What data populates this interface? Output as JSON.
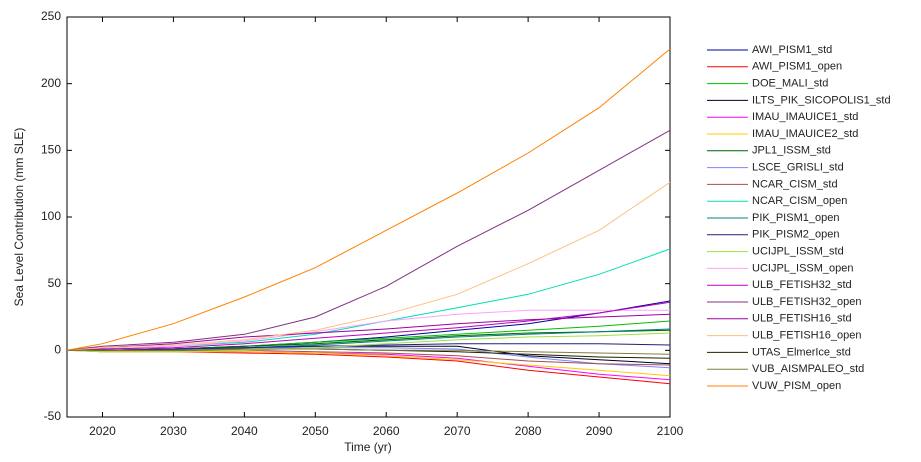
{
  "chart_data": {
    "type": "line",
    "xlabel": "Time (yr)",
    "ylabel": "Sea Level Contribution (mm SLE)",
    "x": [
      2015,
      2020,
      2030,
      2040,
      2050,
      2060,
      2070,
      2080,
      2090,
      2100
    ],
    "xlim": [
      2015,
      2100
    ],
    "xticks": [
      2020,
      2030,
      2040,
      2050,
      2060,
      2070,
      2080,
      2090,
      2100
    ],
    "ylim": [
      -50,
      250
    ],
    "yticks": [
      -50,
      0,
      50,
      100,
      150,
      200,
      250
    ],
    "grid": false,
    "legend": "outside right",
    "series": [
      {
        "name": "AWI_PISM1_std",
        "color": "#0000a0",
        "values": [
          0,
          0,
          1,
          3,
          6,
          10,
          15,
          20,
          28,
          37
        ]
      },
      {
        "name": "AWI_PISM1_open",
        "color": "#ff0000",
        "values": [
          0,
          -1,
          -1,
          -2,
          -3,
          -5,
          -8,
          -15,
          -20,
          -25
        ]
      },
      {
        "name": "DOE_MALI_std",
        "color": "#00c000",
        "values": [
          0,
          0,
          1,
          3,
          6,
          9,
          12,
          15,
          18,
          22
        ]
      },
      {
        "name": "ILTS_PIK_SICOPOLIS1_std",
        "color": "#000020",
        "values": [
          0,
          0,
          1,
          2,
          3,
          3,
          3,
          -4,
          -7,
          -10
        ]
      },
      {
        "name": "IMAU_IMAUICE1_std",
        "color": "#ff00ff",
        "values": [
          0,
          0,
          0,
          -1,
          -2,
          -3,
          -6,
          -12,
          -18,
          -22
        ]
      },
      {
        "name": "IMAU_IMAUICE2_std",
        "color": "#ffcc00",
        "values": [
          0,
          -1,
          -1,
          -1,
          -2,
          -4,
          -7,
          -11,
          -15,
          -19
        ]
      },
      {
        "name": "JPL1_ISSM_std",
        "color": "#006400",
        "values": [
          0,
          0,
          1,
          3,
          5,
          8,
          11,
          13,
          14,
          15
        ]
      },
      {
        "name": "LSCE_GRISLI_std",
        "color": "#8080ff",
        "values": [
          0,
          0,
          1,
          2,
          2,
          2,
          1,
          -5,
          -10,
          -13
        ]
      },
      {
        "name": "NCAR_CISM_std",
        "color": "#a05050",
        "values": [
          0,
          0,
          0,
          0,
          -1,
          -2,
          -4,
          -8,
          -10,
          -11
        ]
      },
      {
        "name": "NCAR_CISM_open",
        "color": "#00e0b0",
        "values": [
          0,
          1,
          3,
          6,
          12,
          22,
          32,
          42,
          57,
          76
        ]
      },
      {
        "name": "PIK_PISM1_open",
        "color": "#008080",
        "values": [
          0,
          0,
          1,
          2,
          4,
          7,
          10,
          12,
          14,
          16
        ]
      },
      {
        "name": "PIK_PISM2_open",
        "color": "#202080",
        "values": [
          0,
          0,
          1,
          2,
          3,
          4,
          5,
          5,
          5,
          4
        ]
      },
      {
        "name": "UCIJPL_ISSM_std",
        "color": "#a0e040",
        "values": [
          0,
          -1,
          -1,
          0,
          2,
          5,
          8,
          10,
          11,
          13
        ]
      },
      {
        "name": "UCIJPL_ISSM_open",
        "color": "#ffa0ff",
        "values": [
          0,
          1,
          3,
          7,
          14,
          22,
          27,
          30,
          30,
          30
        ]
      },
      {
        "name": "ULB_FETISH32_std",
        "color": "#c000c0",
        "values": [
          0,
          1,
          2,
          5,
          9,
          13,
          17,
          22,
          28,
          36
        ]
      },
      {
        "name": "ULB_FETISH32_open",
        "color": "#803080",
        "values": [
          0,
          3,
          6,
          12,
          25,
          48,
          78,
          105,
          135,
          165
        ]
      },
      {
        "name": "ULB_FETISH16_std",
        "color": "#a000a0",
        "values": [
          0,
          2,
          5,
          10,
          13,
          16,
          20,
          23,
          25,
          27
        ]
      },
      {
        "name": "ULB_FETISH16_open",
        "color": "#ffc080",
        "values": [
          0,
          2,
          4,
          8,
          15,
          27,
          42,
          65,
          90,
          126
        ]
      },
      {
        "name": "UTAS_ElmerIce_std",
        "color": "#202000",
        "values": [
          0,
          0,
          0,
          1,
          1,
          0,
          -1,
          -3,
          -5,
          -6
        ]
      },
      {
        "name": "VUB_AISMPALEO_std",
        "color": "#808040",
        "values": [
          0,
          0,
          0,
          1,
          1,
          0,
          0,
          -1,
          -2,
          -3
        ]
      },
      {
        "name": "VUW_PISM_open",
        "color": "#ff8000",
        "values": [
          0,
          5,
          20,
          40,
          62,
          90,
          118,
          148,
          182,
          226
        ]
      }
    ]
  }
}
